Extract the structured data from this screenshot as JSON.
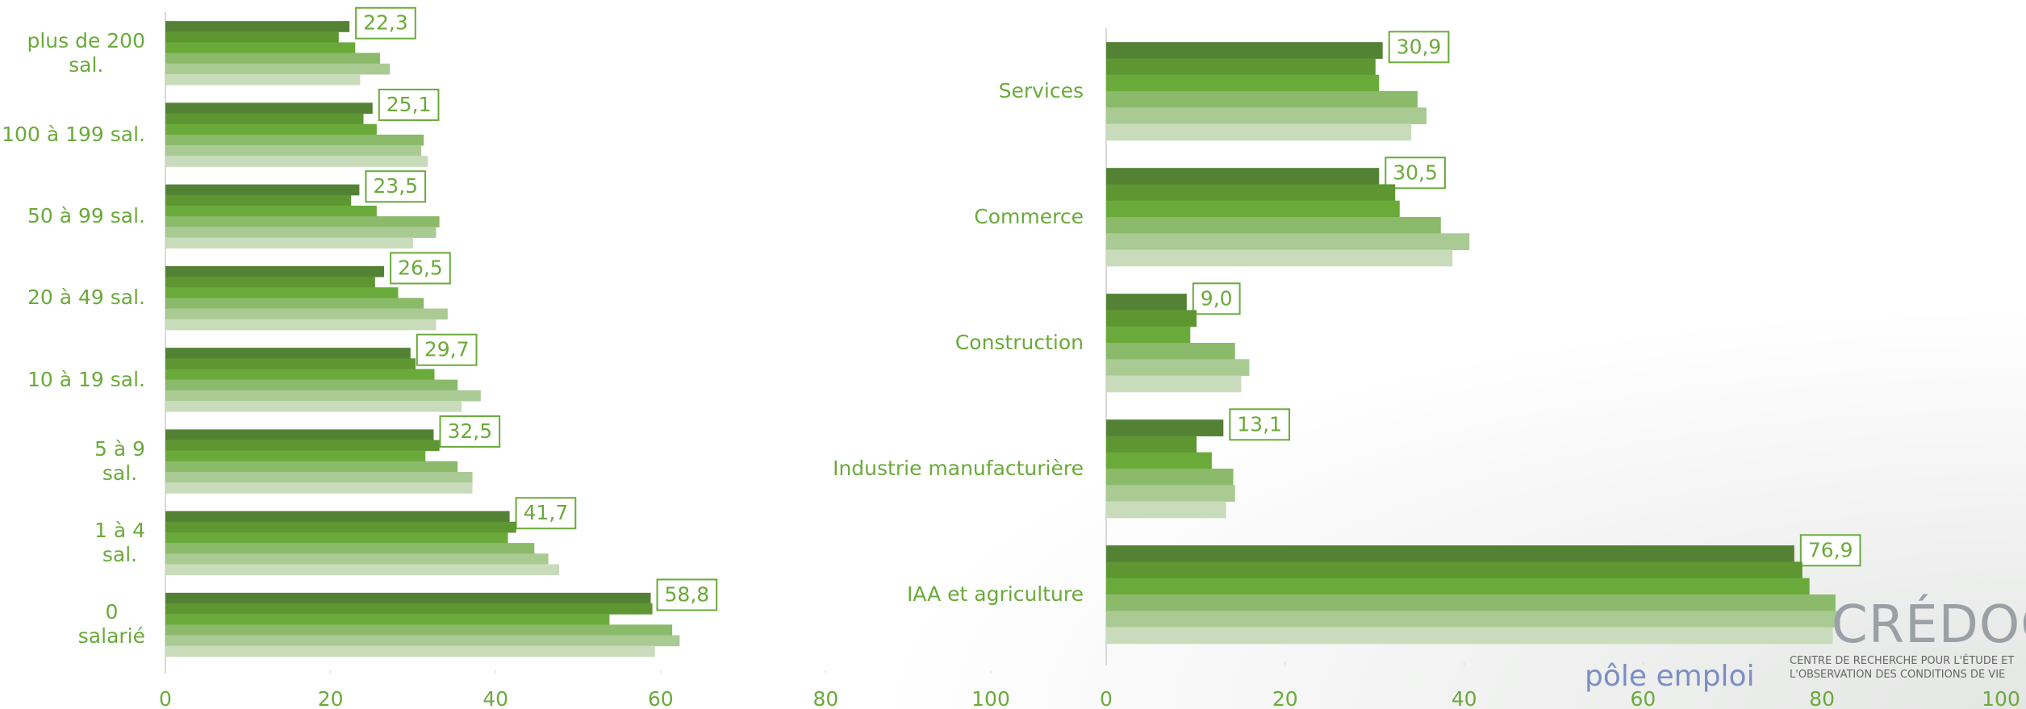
{
  "chart_data": [
    {
      "type": "bar",
      "orientation": "horizontal",
      "categories": [
        "plus de 200\nsal.",
        "100 à 199 sal.",
        "50 à 99 sal.",
        "20 à 49 sal.",
        "10 à 19 sal.",
        "5 à 9\nsal.",
        "1 à 4\nsal.",
        "0\nsalarié"
      ],
      "series": [
        {
          "color": "#548235",
          "values": [
            22.3,
            25.1,
            23.5,
            26.5,
            29.7,
            32.5,
            41.7,
            58.8
          ],
          "value_labels": [
            "22,3",
            "25,1",
            "23,5",
            "26,5",
            "29,7",
            "32,5",
            "41,7",
            "58,8"
          ]
        },
        {
          "color": "#5e9632",
          "values": [
            21,
            24,
            22.5,
            25.4,
            30.3,
            33.2,
            42.5,
            59
          ]
        },
        {
          "color": "#6aaa3a",
          "values": [
            23,
            25.6,
            25.6,
            28.2,
            32.6,
            31.5,
            41.5,
            53.8
          ]
        },
        {
          "color": "#8aba6a",
          "values": [
            26,
            31.3,
            33.2,
            31.3,
            35.4,
            35.4,
            44.7,
            61.4
          ]
        },
        {
          "color": "#a9cb93",
          "values": [
            27.2,
            31,
            32.8,
            34.2,
            38.2,
            37.2,
            46.4,
            62.3
          ]
        },
        {
          "color": "#c8dcbb",
          "values": [
            23.6,
            31.8,
            30,
            32.8,
            35.9,
            37.2,
            47.7,
            59.3
          ]
        }
      ],
      "xlim": [
        0,
        100
      ],
      "xticks": [
        0,
        20,
        40,
        60,
        80,
        100
      ]
    },
    {
      "type": "bar",
      "orientation": "horizontal",
      "categories": [
        "Services",
        "Commerce",
        "Construction",
        "Industrie manufacturière",
        "IAA et agriculture"
      ],
      "series": [
        {
          "color": "#548235",
          "values": [
            30.9,
            30.5,
            9.0,
            13.1,
            76.9
          ],
          "value_labels": [
            "30,9",
            "30,5",
            "9,0",
            "13,1",
            "76,9"
          ]
        },
        {
          "color": "#5e9632",
          "values": [
            30.1,
            32.3,
            10.1,
            10.1,
            77.8
          ]
        },
        {
          "color": "#6aaa3a",
          "values": [
            30.5,
            32.8,
            9.4,
            11.8,
            78.6
          ]
        },
        {
          "color": "#8aba6a",
          "values": [
            34.8,
            37.4,
            14.4,
            14.2,
            81.5
          ]
        },
        {
          "color": "#a9cb93",
          "values": [
            35.8,
            40.6,
            16,
            14.4,
            82
          ]
        },
        {
          "color": "#c8dcbb",
          "values": [
            34.1,
            38.7,
            15.1,
            13.4,
            81.2
          ]
        }
      ],
      "xlim": [
        0,
        100
      ],
      "xticks": [
        0,
        20,
        40,
        60,
        80,
        100
      ]
    }
  ],
  "logos": {
    "credoc": "CRÉDOC",
    "credoc_tagline": "CENTRE DE RECHERCHE POUR L'ÉTUDE ET\nL'OBSERVATION DES CONDITIONS DE VIE",
    "pole_emploi": "pôle emploi"
  }
}
